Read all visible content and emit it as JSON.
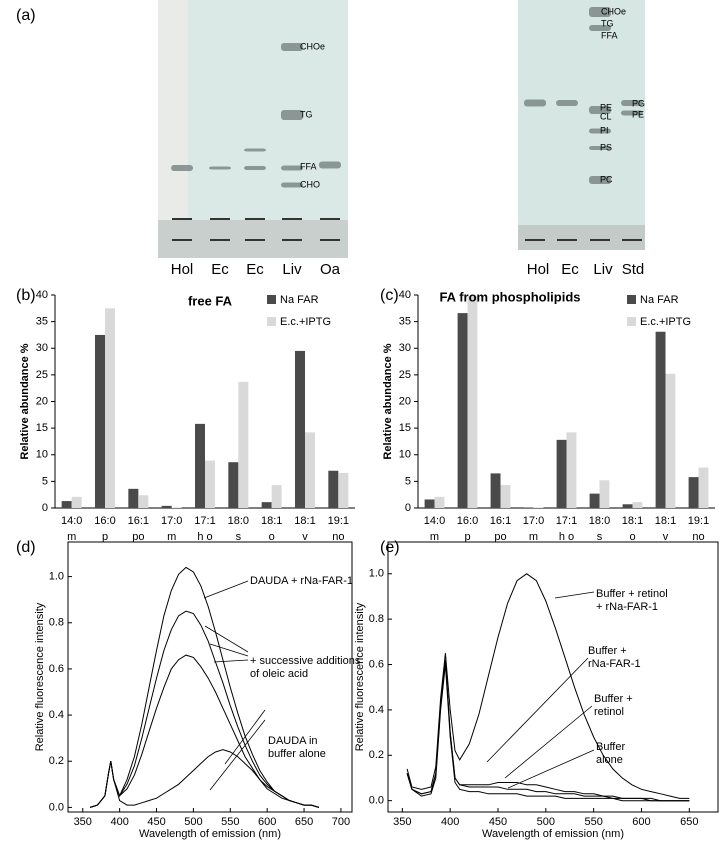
{
  "panel_labels": [
    "(a)",
    "(b)",
    "(c)",
    "(d)",
    "(e)"
  ],
  "gels": [
    {
      "lanes": [
        "Hol",
        "Ec",
        "Ec",
        "Liv",
        "Oa"
      ],
      "band_labels": [
        "CHOe",
        "TG",
        "FFA",
        "CHO"
      ]
    },
    {
      "lanes": [
        "Hol",
        "Ec",
        "Liv",
        "Std"
      ],
      "band_labels": [
        "CHOe",
        "TG",
        "FFA",
        "PE",
        "CL",
        "PI",
        "PS",
        "PC",
        "PG",
        "PE"
      ]
    }
  ],
  "chart_data": [
    {
      "type": "bar",
      "title": "free FA",
      "ylabel": "Relative abundance %",
      "categories": [
        "14:0",
        "16:0",
        "16:1",
        "17:0",
        "17:1",
        "18:0",
        "18:1",
        "18:1",
        "19:1"
      ],
      "category_sublabels": [
        "m",
        "p",
        "po",
        "m",
        "h o",
        "s",
        "o",
        "v",
        "no"
      ],
      "series": [
        {
          "name": "Na FAR",
          "color": "#4a4a4a",
          "values": [
            1.3,
            32.5,
            3.6,
            0.4,
            15.8,
            8.6,
            1.1,
            29.5,
            7.0
          ]
        },
        {
          "name": "E.c.+IPTG",
          "color": "#d9d9d9",
          "values": [
            2.1,
            37.5,
            2.4,
            0.1,
            8.9,
            23.7,
            4.3,
            14.2,
            6.6
          ]
        }
      ],
      "ylim": [
        0,
        40
      ],
      "yticks": [
        0,
        5,
        10,
        15,
        20,
        25,
        30,
        35,
        40
      ],
      "legend": "top-right"
    },
    {
      "type": "bar",
      "title": "FA from phospholipids",
      "ylabel": "Relative abundance %",
      "categories": [
        "14:0",
        "16:0",
        "16:1",
        "17:0",
        "17:1",
        "18:0",
        "18:1",
        "18:1",
        "19:1"
      ],
      "category_sublabels": [
        "m",
        "p",
        "po",
        "m",
        "h o",
        "s",
        "o",
        "v",
        "no"
      ],
      "series": [
        {
          "name": "Na FAR",
          "color": "#4a4a4a",
          "values": [
            1.6,
            36.6,
            6.5,
            0.1,
            12.8,
            2.7,
            0.7,
            33.1,
            5.8
          ]
        },
        {
          "name": "E.c.+IPTG",
          "color": "#d9d9d9",
          "values": [
            2.1,
            39.8,
            4.3,
            0.1,
            14.2,
            5.2,
            1.1,
            25.2,
            7.6
          ]
        }
      ],
      "ylim": [
        0,
        40
      ],
      "yticks": [
        0,
        5,
        10,
        15,
        20,
        25,
        30,
        35,
        40
      ],
      "legend": "top-right"
    },
    {
      "type": "line",
      "xlabel": "Wavelength of emission  (nm)",
      "ylabel": "Relative fluorescence intensity",
      "x": [
        360,
        370,
        380,
        385,
        388,
        392,
        400,
        410,
        420,
        430,
        440,
        450,
        460,
        470,
        480,
        490,
        500,
        510,
        520,
        530,
        540,
        550,
        560,
        570,
        580,
        590,
        600,
        610,
        620,
        630,
        640,
        650,
        660,
        670
      ],
      "series": [
        {
          "color": "#000000",
          "values": [
            0,
            0.01,
            0.05,
            0.15,
            0.2,
            0.12,
            0.05,
            0.12,
            0.22,
            0.36,
            0.52,
            0.68,
            0.83,
            0.94,
            1.01,
            1.04,
            1.02,
            0.96,
            0.87,
            0.76,
            0.64,
            0.52,
            0.41,
            0.31,
            0.23,
            0.16,
            0.11,
            0.07,
            0.05,
            0.03,
            0.02,
            0.01,
            0.01,
            0
          ]
        },
        {
          "color": "#000000",
          "values": [
            0,
            0.01,
            0.05,
            0.15,
            0.2,
            0.12,
            0.05,
            0.1,
            0.18,
            0.3,
            0.43,
            0.56,
            0.68,
            0.77,
            0.83,
            0.85,
            0.84,
            0.79,
            0.72,
            0.63,
            0.54,
            0.44,
            0.35,
            0.27,
            0.2,
            0.14,
            0.1,
            0.07,
            0.05,
            0.03,
            0.02,
            0.01,
            0.01,
            0
          ]
        },
        {
          "color": "#000000",
          "values": [
            0,
            0.01,
            0.05,
            0.15,
            0.2,
            0.12,
            0.05,
            0.08,
            0.14,
            0.23,
            0.33,
            0.43,
            0.52,
            0.6,
            0.64,
            0.66,
            0.65,
            0.61,
            0.56,
            0.5,
            0.43,
            0.36,
            0.29,
            0.22,
            0.17,
            0.12,
            0.08,
            0.06,
            0.04,
            0.03,
            0.02,
            0.01,
            0.01,
            0
          ]
        },
        {
          "color": "#000000",
          "values": [
            0,
            0.01,
            0.05,
            0.15,
            0.2,
            0.12,
            0.03,
            0.01,
            0.01,
            0.02,
            0.03,
            0.04,
            0.06,
            0.08,
            0.1,
            0.13,
            0.16,
            0.19,
            0.22,
            0.24,
            0.25,
            0.24,
            0.22,
            0.19,
            0.16,
            0.12,
            0.09,
            0.07,
            0.05,
            0.03,
            0.02,
            0.01,
            0.01,
            0
          ]
        }
      ],
      "xlim": [
        330,
        715
      ],
      "xticks": [
        350,
        400,
        450,
        500,
        550,
        600,
        650,
        700
      ],
      "ylim": [
        -0.02,
        1.15
      ],
      "yticks": [
        {
          "value": 0,
          "label": "0.0"
        },
        0.2,
        0.4,
        0.6,
        0.8,
        {
          "value": 1,
          "label": "1.0"
        }
      ],
      "annotations": [
        [
          "DAUDA + rNa-FAR-1"
        ],
        [
          "+ successive additions",
          "of oleic acid"
        ],
        [
          "DAUDA in",
          "buffer alone"
        ]
      ]
    },
    {
      "type": "line",
      "xlabel": "Wavelength of emission  (nm)",
      "ylabel": "Relative fluorescence intensity",
      "x": [
        355,
        360,
        370,
        380,
        385,
        390,
        395,
        400,
        405,
        410,
        420,
        430,
        440,
        450,
        460,
        470,
        480,
        490,
        500,
        510,
        520,
        530,
        540,
        550,
        560,
        570,
        580,
        590,
        600,
        610,
        620,
        630,
        640,
        650
      ],
      "series": [
        {
          "color": "#000000",
          "values": [
            0.14,
            0.06,
            0.05,
            0.06,
            0.15,
            0.45,
            0.65,
            0.4,
            0.22,
            0.18,
            0.25,
            0.38,
            0.55,
            0.72,
            0.87,
            0.97,
            1.0,
            0.97,
            0.88,
            0.76,
            0.63,
            0.5,
            0.38,
            0.28,
            0.2,
            0.14,
            0.1,
            0.07,
            0.05,
            0.04,
            0.03,
            0.02,
            0.01,
            0.01
          ]
        },
        {
          "color": "#000000",
          "values": [
            0.12,
            0.05,
            0.03,
            0.04,
            0.12,
            0.42,
            0.62,
            0.3,
            0.1,
            0.07,
            0.06,
            0.06,
            0.06,
            0.06,
            0.05,
            0.05,
            0.05,
            0.04,
            0.04,
            0.03,
            0.03,
            0.03,
            0.02,
            0.02,
            0.02,
            0.01,
            0.01,
            0.01,
            0.01,
            0.01,
            0,
            0,
            0,
            0
          ]
        },
        {
          "color": "#000000",
          "values": [
            0.12,
            0.05,
            0.03,
            0.04,
            0.12,
            0.42,
            0.62,
            0.3,
            0.1,
            0.07,
            0.07,
            0.07,
            0.07,
            0.08,
            0.08,
            0.08,
            0.07,
            0.07,
            0.06,
            0.05,
            0.04,
            0.04,
            0.03,
            0.03,
            0.02,
            0.02,
            0.01,
            0.01,
            0.01,
            0,
            0,
            0,
            0,
            0
          ]
        },
        {
          "color": "#000000",
          "values": [
            0.12,
            0.05,
            0.02,
            0.03,
            0.1,
            0.4,
            0.6,
            0.28,
            0.08,
            0.05,
            0.04,
            0.04,
            0.03,
            0.03,
            0.03,
            0.03,
            0.02,
            0.02,
            0.02,
            0.02,
            0.01,
            0.01,
            0.01,
            0.01,
            0.01,
            0.01,
            0,
            0,
            0,
            0,
            0,
            0,
            0,
            0
          ]
        }
      ],
      "xlim": [
        335,
        680
      ],
      "xticks": [
        350,
        400,
        450,
        500,
        550,
        600,
        650
      ],
      "ylim": [
        -0.05,
        1.14
      ],
      "yticks": [
        {
          "value": 0,
          "label": "0.0"
        },
        0.2,
        0.4,
        0.6,
        0.8,
        {
          "value": 1,
          "label": "1.0"
        }
      ],
      "annotations": [
        [
          "Buffer + retinol",
          "+ rNa-FAR-1"
        ],
        [
          "Buffer +",
          "rNa-FAR-1"
        ],
        [
          "Buffer +",
          "retinol"
        ],
        [
          "Buffer",
          "alone"
        ]
      ]
    }
  ]
}
